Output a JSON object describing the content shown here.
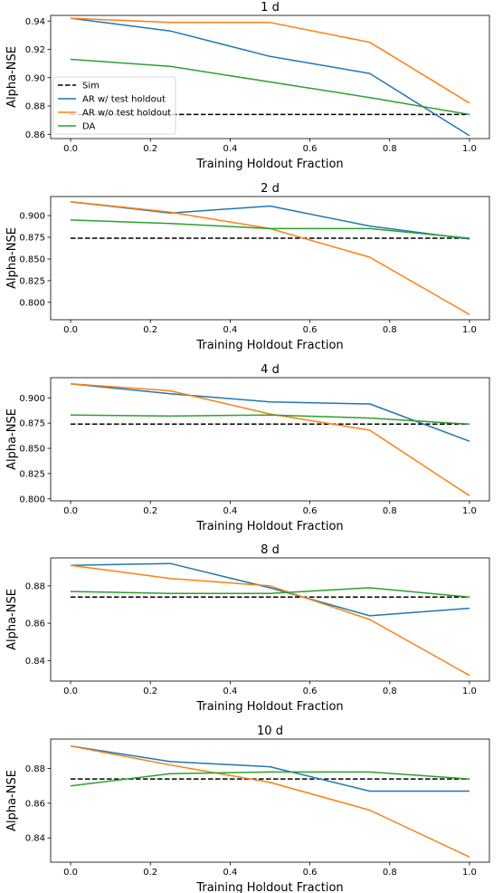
{
  "colors": {
    "sim": "#000000",
    "ar_with": "#1f77b4",
    "ar_without": "#ff7f0e",
    "da": "#2ca02c"
  },
  "chart_data": [
    {
      "type": "line",
      "title": "1 d",
      "xlabel": "Training Holdout Fraction",
      "ylabel": "Alpha-NSE",
      "xlim": [
        -0.05,
        1.05
      ],
      "ylim": [
        0.857,
        0.944
      ],
      "xticks": [
        0.0,
        0.2,
        0.4,
        0.6,
        0.8,
        1.0
      ],
      "xtick_labels": [
        "0.0",
        "0.2",
        "0.4",
        "0.6",
        "0.8",
        "1.0"
      ],
      "yticks": [
        0.86,
        0.88,
        0.9,
        0.92,
        0.94
      ],
      "ytick_labels": [
        "0.86",
        "0.88",
        "0.90",
        "0.92",
        "0.94"
      ],
      "legend": "center-left",
      "series": [
        {
          "name": "Sim",
          "style": "dashed",
          "color": "#000000",
          "x": [
            0.0,
            1.0
          ],
          "y": [
            0.874,
            0.874
          ]
        },
        {
          "name": "AR w/ test holdout",
          "style": "solid",
          "color": "#1f77b4",
          "x": [
            0.0,
            0.25,
            0.5,
            0.75,
            1.0
          ],
          "y": [
            0.942,
            0.933,
            0.915,
            0.903,
            0.859
          ]
        },
        {
          "name": "AR w/o test holdout",
          "style": "solid",
          "color": "#ff7f0e",
          "x": [
            0.0,
            0.25,
            0.5,
            0.75,
            1.0
          ],
          "y": [
            0.942,
            0.939,
            0.939,
            0.925,
            0.882
          ]
        },
        {
          "name": "DA",
          "style": "solid",
          "color": "#2ca02c",
          "x": [
            0.0,
            0.25,
            0.5,
            0.75,
            1.0
          ],
          "y": [
            0.913,
            0.908,
            0.897,
            0.886,
            0.874
          ]
        }
      ]
    },
    {
      "type": "line",
      "title": "2 d",
      "xlabel": "Training Holdout Fraction",
      "ylabel": "Alpha-NSE",
      "xlim": [
        -0.05,
        1.05
      ],
      "ylim": [
        0.78,
        0.922
      ],
      "xticks": [
        0.0,
        0.2,
        0.4,
        0.6,
        0.8,
        1.0
      ],
      "xtick_labels": [
        "0.0",
        "0.2",
        "0.4",
        "0.6",
        "0.8",
        "1.0"
      ],
      "yticks": [
        0.8,
        0.825,
        0.85,
        0.875,
        0.9
      ],
      "ytick_labels": [
        "0.800",
        "0.825",
        "0.850",
        "0.875",
        "0.900"
      ],
      "series": [
        {
          "name": "Sim",
          "style": "dashed",
          "color": "#000000",
          "x": [
            0.0,
            1.0
          ],
          "y": [
            0.874,
            0.874
          ]
        },
        {
          "name": "AR w/ test holdout",
          "style": "solid",
          "color": "#1f77b4",
          "x": [
            0.0,
            0.25,
            0.5,
            0.75,
            1.0
          ],
          "y": [
            0.916,
            0.903,
            0.911,
            0.888,
            0.873
          ]
        },
        {
          "name": "AR w/o test holdout",
          "style": "solid",
          "color": "#ff7f0e",
          "x": [
            0.0,
            0.25,
            0.5,
            0.75,
            1.0
          ],
          "y": [
            0.916,
            0.904,
            0.885,
            0.852,
            0.786
          ]
        },
        {
          "name": "DA",
          "style": "solid",
          "color": "#2ca02c",
          "x": [
            0.0,
            0.25,
            0.5,
            0.75,
            1.0
          ],
          "y": [
            0.895,
            0.891,
            0.885,
            0.885,
            0.874
          ]
        }
      ]
    },
    {
      "type": "line",
      "title": "4 d",
      "xlabel": "Training Holdout Fraction",
      "ylabel": "Alpha-NSE",
      "xlim": [
        -0.05,
        1.05
      ],
      "ylim": [
        0.798,
        0.92
      ],
      "xticks": [
        0.0,
        0.2,
        0.4,
        0.6,
        0.8,
        1.0
      ],
      "xtick_labels": [
        "0.0",
        "0.2",
        "0.4",
        "0.6",
        "0.8",
        "1.0"
      ],
      "yticks": [
        0.8,
        0.825,
        0.85,
        0.875,
        0.9
      ],
      "ytick_labels": [
        "0.800",
        "0.825",
        "0.850",
        "0.875",
        "0.900"
      ],
      "series": [
        {
          "name": "Sim",
          "style": "dashed",
          "color": "#000000",
          "x": [
            0.0,
            1.0
          ],
          "y": [
            0.874,
            0.874
          ]
        },
        {
          "name": "AR w/ test holdout",
          "style": "solid",
          "color": "#1f77b4",
          "x": [
            0.0,
            0.25,
            0.5,
            0.75,
            1.0
          ],
          "y": [
            0.914,
            0.904,
            0.896,
            0.894,
            0.857
          ]
        },
        {
          "name": "AR w/o test holdout",
          "style": "solid",
          "color": "#ff7f0e",
          "x": [
            0.0,
            0.25,
            0.5,
            0.75,
            1.0
          ],
          "y": [
            0.914,
            0.907,
            0.884,
            0.868,
            0.803
          ]
        },
        {
          "name": "DA",
          "style": "solid",
          "color": "#2ca02c",
          "x": [
            0.0,
            0.25,
            0.5,
            0.75,
            1.0
          ],
          "y": [
            0.883,
            0.882,
            0.883,
            0.88,
            0.874
          ]
        }
      ]
    },
    {
      "type": "line",
      "title": "8 d",
      "xlabel": "Training Holdout Fraction",
      "ylabel": "Alpha-NSE",
      "xlim": [
        -0.05,
        1.05
      ],
      "ylim": [
        0.829,
        0.895
      ],
      "xticks": [
        0.0,
        0.2,
        0.4,
        0.6,
        0.8,
        1.0
      ],
      "xtick_labels": [
        "0.0",
        "0.2",
        "0.4",
        "0.6",
        "0.8",
        "1.0"
      ],
      "yticks": [
        0.84,
        0.86,
        0.88
      ],
      "ytick_labels": [
        "0.84",
        "0.86",
        "0.88"
      ],
      "series": [
        {
          "name": "Sim",
          "style": "dashed",
          "color": "#000000",
          "x": [
            0.0,
            1.0
          ],
          "y": [
            0.874,
            0.874
          ]
        },
        {
          "name": "AR w/ test holdout",
          "style": "solid",
          "color": "#1f77b4",
          "x": [
            0.0,
            0.25,
            0.5,
            0.75,
            1.0
          ],
          "y": [
            0.891,
            0.892,
            0.879,
            0.864,
            0.868
          ]
        },
        {
          "name": "AR w/o test holdout",
          "style": "solid",
          "color": "#ff7f0e",
          "x": [
            0.0,
            0.25,
            0.5,
            0.75,
            1.0
          ],
          "y": [
            0.891,
            0.884,
            0.88,
            0.862,
            0.832
          ]
        },
        {
          "name": "DA",
          "style": "solid",
          "color": "#2ca02c",
          "x": [
            0.0,
            0.25,
            0.5,
            0.75,
            1.0
          ],
          "y": [
            0.877,
            0.876,
            0.876,
            0.879,
            0.874
          ]
        }
      ]
    },
    {
      "type": "line",
      "title": "10 d",
      "xlabel": "Training Holdout Fraction",
      "ylabel": "Alpha-NSE",
      "xlim": [
        -0.05,
        1.05
      ],
      "ylim": [
        0.826,
        0.897
      ],
      "xticks": [
        0.0,
        0.2,
        0.4,
        0.6,
        0.8,
        1.0
      ],
      "xtick_labels": [
        "0.0",
        "0.2",
        "0.4",
        "0.6",
        "0.8",
        "1.0"
      ],
      "yticks": [
        0.84,
        0.86,
        0.88
      ],
      "ytick_labels": [
        "0.84",
        "0.86",
        "0.88"
      ],
      "series": [
        {
          "name": "Sim",
          "style": "dashed",
          "color": "#000000",
          "x": [
            0.0,
            1.0
          ],
          "y": [
            0.874,
            0.874
          ]
        },
        {
          "name": "AR w/ test holdout",
          "style": "solid",
          "color": "#1f77b4",
          "x": [
            0.0,
            0.25,
            0.5,
            0.75,
            1.0
          ],
          "y": [
            0.893,
            0.884,
            0.881,
            0.867,
            0.867
          ]
        },
        {
          "name": "AR w/o test holdout",
          "style": "solid",
          "color": "#ff7f0e",
          "x": [
            0.0,
            0.25,
            0.5,
            0.75,
            1.0
          ],
          "y": [
            0.893,
            0.882,
            0.872,
            0.856,
            0.829
          ]
        },
        {
          "name": "DA",
          "style": "solid",
          "color": "#2ca02c",
          "x": [
            0.0,
            0.25,
            0.5,
            0.75,
            1.0
          ],
          "y": [
            0.87,
            0.877,
            0.878,
            0.878,
            0.874
          ]
        }
      ]
    }
  ]
}
